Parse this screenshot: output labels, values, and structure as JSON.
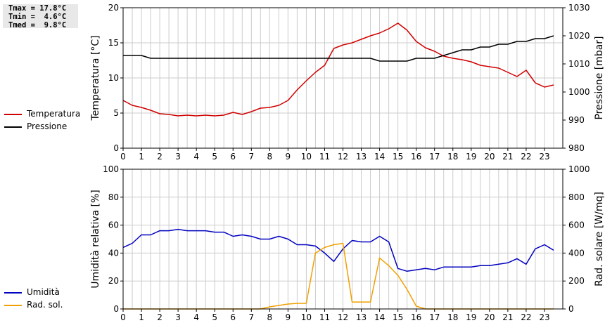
{
  "stats": {
    "lines": [
      "Tmax = 17.8°C",
      "Tmin =  4.6°C",
      "Tmed =  9.8°C"
    ]
  },
  "colors": {
    "temperature": "#d00000",
    "pressure": "#000000",
    "humidity": "#0000c0",
    "radiation": "#f0a000",
    "grid": "#cccccc",
    "frame": "#000000"
  },
  "legend_top": [
    {
      "label": "Temperatura",
      "color": "#d00000"
    },
    {
      "label": "Pressione",
      "color": "#000000"
    }
  ],
  "legend_bottom": [
    {
      "label": "Umidità",
      "color": "#0000c0"
    },
    {
      "label": "Rad. sol.",
      "color": "#f0a000"
    }
  ],
  "chart_data": [
    {
      "type": "line",
      "ylabel_left": "Temperatura [°C]",
      "ylabel_right": "Pressione [mbar]",
      "xlim": [
        0,
        24
      ],
      "x_ticks": [
        0,
        1,
        2,
        3,
        4,
        5,
        6,
        7,
        8,
        9,
        10,
        11,
        12,
        13,
        14,
        15,
        16,
        17,
        18,
        19,
        20,
        21,
        22,
        23
      ],
      "ylim_left": [
        0,
        20
      ],
      "y_ticks_left": [
        0,
        5,
        10,
        15,
        20
      ],
      "ylim_right": [
        980,
        1030
      ],
      "y_ticks_right": [
        980,
        990,
        1000,
        1010,
        1020,
        1030
      ],
      "grid": true,
      "series": [
        {
          "name": "Temperatura",
          "axis": "left",
          "color": "#d00000",
          "x": [
            0,
            0.5,
            1,
            1.5,
            2,
            2.5,
            3,
            3.5,
            4,
            4.5,
            5,
            5.5,
            6,
            6.5,
            7,
            7.5,
            8,
            8.5,
            9,
            9.5,
            10,
            10.5,
            11,
            11.5,
            12,
            12.5,
            13,
            13.5,
            14,
            14.5,
            15,
            15.5,
            16,
            16.5,
            17,
            17.5,
            18,
            18.5,
            19,
            19.5,
            20,
            20.5,
            21,
            21.5,
            22,
            22.5,
            23,
            23.5
          ],
          "y": [
            6.8,
            6.1,
            5.8,
            5.4,
            4.9,
            4.8,
            4.6,
            4.7,
            4.6,
            4.7,
            4.6,
            4.7,
            5.1,
            4.8,
            5.2,
            5.7,
            5.8,
            6.1,
            6.8,
            8.3,
            9.6,
            10.8,
            11.8,
            14.2,
            14.7,
            15.0,
            15.5,
            16.0,
            16.4,
            17.0,
            17.8,
            16.8,
            15.2,
            14.3,
            13.8,
            13.1,
            12.8,
            12.6,
            12.3,
            11.8,
            11.6,
            11.4,
            10.8,
            10.2,
            11.1,
            9.3,
            8.7,
            9.0
          ]
        },
        {
          "name": "Pressione",
          "axis": "right",
          "color": "#000000",
          "x": [
            0,
            1,
            1.5,
            2,
            13,
            13.5,
            14,
            15,
            15.5,
            16,
            17,
            17.5,
            18,
            18.5,
            19,
            19.5,
            20,
            20.5,
            21,
            21.5,
            22,
            22.5,
            23,
            23.5
          ],
          "y": [
            1013,
            1013,
            1012,
            1012,
            1012,
            1012,
            1011,
            1011,
            1011,
            1012,
            1012,
            1013,
            1014,
            1015,
            1015,
            1016,
            1016,
            1017,
            1017,
            1018,
            1018,
            1019,
            1019,
            1020
          ]
        }
      ]
    },
    {
      "type": "line",
      "ylabel_left": "Umidità relativa [%]",
      "ylabel_right": "Rad. solare [W/mq]",
      "xlim": [
        0,
        24
      ],
      "x_ticks": [
        0,
        1,
        2,
        3,
        4,
        5,
        6,
        7,
        8,
        9,
        10,
        11,
        12,
        13,
        14,
        15,
        16,
        17,
        18,
        19,
        20,
        21,
        22,
        23
      ],
      "ylim_left": [
        0,
        100
      ],
      "y_ticks_left": [
        0,
        20,
        40,
        60,
        80,
        100
      ],
      "ylim_right": [
        0,
        1000
      ],
      "y_ticks_right": [
        0,
        200,
        400,
        600,
        800,
        1000
      ],
      "grid": true,
      "series": [
        {
          "name": "Umidità",
          "axis": "left",
          "color": "#0000c0",
          "x": [
            0,
            0.5,
            1,
            1.5,
            2,
            2.5,
            3,
            3.5,
            4,
            4.5,
            5,
            5.5,
            6,
            6.5,
            7,
            7.5,
            8,
            8.5,
            9,
            9.5,
            10,
            10.5,
            11,
            11.5,
            12,
            12.5,
            13,
            13.5,
            14,
            14.5,
            15,
            15.5,
            16,
            16.5,
            17,
            17.5,
            18,
            18.5,
            19,
            19.5,
            20,
            20.5,
            21,
            21.5,
            22,
            22.5,
            23,
            23.5
          ],
          "y": [
            44,
            47,
            53,
            53,
            56,
            56,
            57,
            56,
            56,
            56,
            55,
            55,
            52,
            53,
            52,
            50,
            50,
            52,
            50,
            46,
            46,
            45,
            40,
            34,
            43,
            49,
            48,
            48,
            52,
            48,
            29,
            27,
            28,
            29,
            28,
            30,
            30,
            30,
            30,
            31,
            31,
            32,
            33,
            36,
            32,
            43,
            46,
            42
          ]
        },
        {
          "name": "Rad. sol.",
          "axis": "right",
          "color": "#f0a000",
          "x": [
            0,
            1,
            2,
            3,
            4,
            5,
            6,
            7,
            7.5,
            8,
            8.5,
            9,
            9.5,
            10,
            10.5,
            11,
            11.5,
            12,
            12.5,
            13,
            13.5,
            14,
            14.5,
            15,
            15.5,
            16,
            16.5,
            17,
            18,
            19,
            20,
            21,
            22,
            23,
            23.5
          ],
          "y": [
            0,
            0,
            0,
            0,
            0,
            0,
            0,
            0,
            0,
            15,
            25,
            35,
            40,
            40,
            400,
            440,
            460,
            470,
            50,
            50,
            50,
            365,
            310,
            240,
            140,
            20,
            0,
            0,
            0,
            0,
            0,
            0,
            0,
            0,
            0
          ]
        }
      ]
    }
  ]
}
